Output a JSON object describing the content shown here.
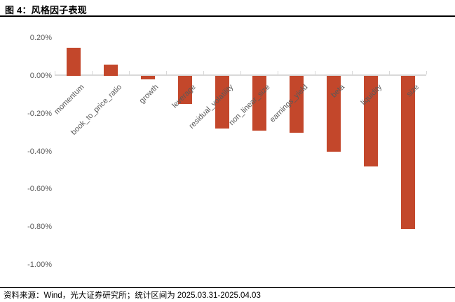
{
  "page": {
    "title": "图 4：风格因子表现"
  },
  "footer": {
    "source": "资料来源：Wind，光大证券研究所；统计区间为 2025.03.31-2025.04.03"
  },
  "colors": {
    "bar": "#C3472B",
    "axis_line": "#D9D9D9",
    "tick_label": "#595959",
    "divider": "#000000"
  },
  "chart_data": {
    "type": "bar",
    "title": "图 4：风格因子表现",
    "categories": [
      "momentum",
      "book_to_price_ratio",
      "growth",
      "leverage",
      "residual_volatility",
      "non_linear_size",
      "earnings_yield",
      "beta",
      "liquidity",
      "size"
    ],
    "values": [
      0.15,
      0.06,
      -0.02,
      -0.15,
      -0.28,
      -0.29,
      -0.3,
      -0.4,
      -0.48,
      -0.81
    ],
    "value_unit": "%",
    "xlabel": "",
    "ylabel": "",
    "ylim": [
      -1.0,
      0.2
    ],
    "y_tick_labels": [
      "0.20%",
      "0.00%",
      "-0.20%",
      "-0.40%",
      "-0.60%",
      "-0.80%",
      "-1.00%"
    ],
    "y_tick_values": [
      0.2,
      0.0,
      -0.2,
      -0.4,
      -0.6,
      -0.8,
      -1.0
    ],
    "grid": false,
    "legend": "none"
  }
}
